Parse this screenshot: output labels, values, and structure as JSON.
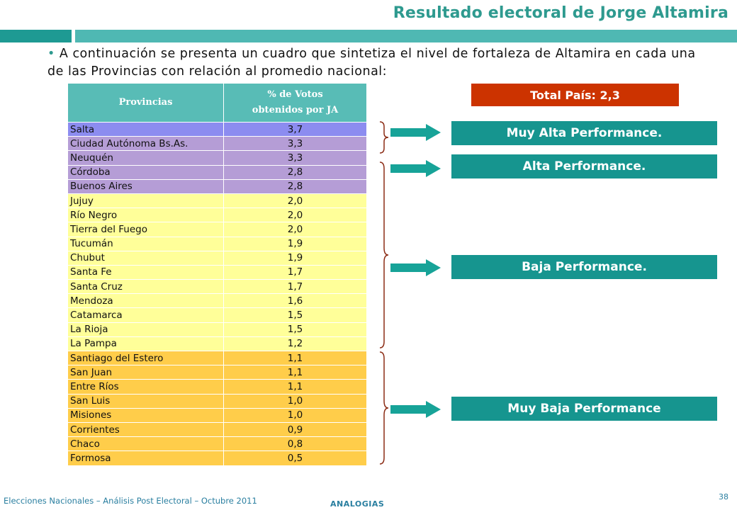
{
  "slide": {
    "title": "Resultado electoral de Jorge Altamira",
    "intro_bullet": "•",
    "intro_text": "A continuación se presenta un cuadro que sintetiza el nivel de fortaleza de Altamira en cada una de las Provincias con relación al promedio nacional:"
  },
  "table": {
    "headers": [
      "Provincias",
      "% de Votos",
      "obtenidos por JA"
    ],
    "rows": [
      {
        "province": "Salta",
        "value": "3,7",
        "group": "blue"
      },
      {
        "province": "Ciudad Autónoma Bs.As.",
        "value": "3,3",
        "group": "purple"
      },
      {
        "province": "Neuquén",
        "value": "3,3",
        "group": "purple"
      },
      {
        "province": "Córdoba",
        "value": "2,8",
        "group": "purple"
      },
      {
        "province": "Buenos Aires",
        "value": "2,8",
        "group": "purple"
      },
      {
        "province": "Jujuy",
        "value": "2,0",
        "group": "yellow"
      },
      {
        "province": "Río Negro",
        "value": "2,0",
        "group": "yellow"
      },
      {
        "province": "Tierra del Fuego",
        "value": "2,0",
        "group": "yellow"
      },
      {
        "province": "Tucumán",
        "value": "1,9",
        "group": "yellow"
      },
      {
        "province": "Chubut",
        "value": "1,9",
        "group": "yellow"
      },
      {
        "province": "Santa Fe",
        "value": "1,7",
        "group": "yellow"
      },
      {
        "province": "Santa Cruz",
        "value": "1,7",
        "group": "yellow"
      },
      {
        "province": "Mendoza",
        "value": "1,6",
        "group": "yellow"
      },
      {
        "province": "Catamarca",
        "value": "1,5",
        "group": "yellow"
      },
      {
        "province": "La Rioja",
        "value": "1,5",
        "group": "yellow"
      },
      {
        "province": "La Pampa",
        "value": "1,2",
        "group": "yellow"
      },
      {
        "province": "Santiago del Estero",
        "value": "1,1",
        "group": "orange"
      },
      {
        "province": "San Juan",
        "value": "1,1",
        "group": "orange"
      },
      {
        "province": "Entre Ríos",
        "value": "1,1",
        "group": "orange"
      },
      {
        "province": "San Luis",
        "value": "1,0",
        "group": "orange"
      },
      {
        "province": "Misiones",
        "value": "1,0",
        "group": "orange"
      },
      {
        "province": "Corrientes",
        "value": "0,9",
        "group": "orange"
      },
      {
        "province": "Chaco",
        "value": "0,8",
        "group": "orange"
      },
      {
        "province": "Formosa",
        "value": "0,5",
        "group": "orange"
      }
    ]
  },
  "summary": {
    "total_label": "Total País: 2,3",
    "categories": [
      "Muy Alta Performance.",
      "Alta Performance.",
      "Baja Performance.",
      "Muy Baja Performance"
    ]
  },
  "footer": {
    "left_text": "Elecciones Nacionales – Análisis Post Electoral – Octubre 2011",
    "brand": "ANALOGIAS",
    "page_number": "38"
  },
  "colors": {
    "title": "#2E9A8F",
    "header_bg": "#58BCB6",
    "blue_row": "#8C8CF0",
    "purple_row": "#B59DD6",
    "yellow_row": "#FFFF99",
    "orange_row": "#FFCD4A",
    "total_bg": "#CC3300",
    "performance_bg": "#16958F",
    "arrow": "#17A398",
    "brace": "#8B2B14"
  },
  "icons": [
    "right-arrow-icon",
    "curly-brace-icon"
  ]
}
